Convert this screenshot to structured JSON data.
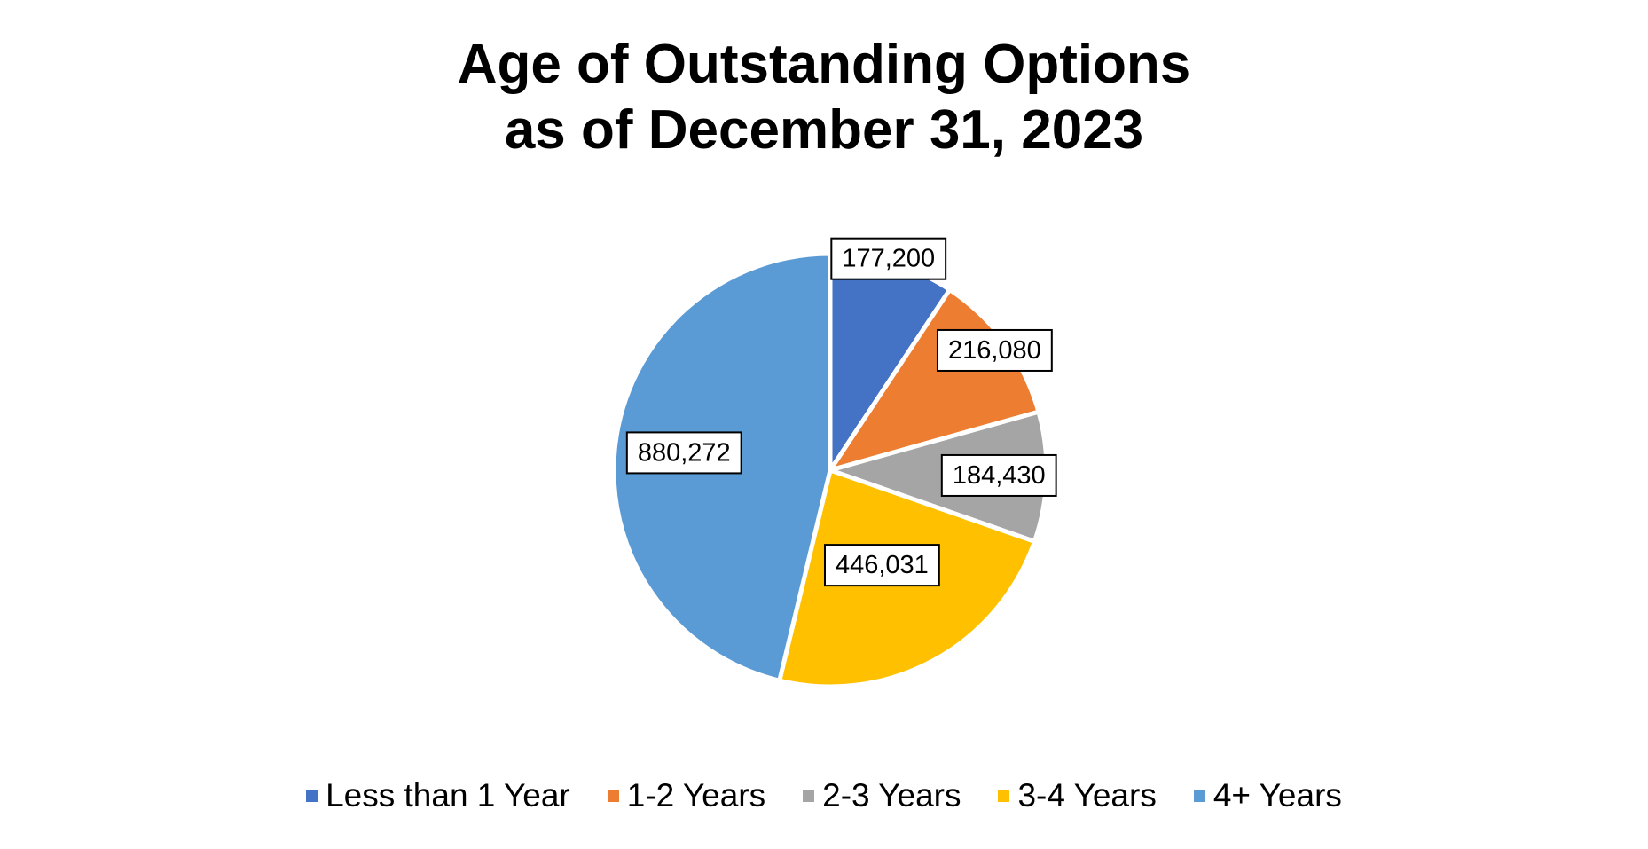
{
  "chart_data": {
    "type": "pie",
    "title_lines": [
      "Age of Outstanding Options",
      "as of December 31, 2023"
    ],
    "categories": [
      "Less than 1 Year",
      "1-2 Years",
      "2-3 Years",
      "3-4 Years",
      "4+ Years"
    ],
    "values": [
      177200,
      216080,
      184430,
      446031,
      880272
    ],
    "value_labels": [
      "177,200",
      "216,080",
      "184,430",
      "446,031",
      "880,272"
    ],
    "colors": [
      "#4472C4",
      "#ED7D31",
      "#A5A5A5",
      "#FFC000",
      "#5B9BD5"
    ],
    "start_angle": "12 o'clock",
    "direction": "clockwise",
    "legend_position": "bottom"
  }
}
